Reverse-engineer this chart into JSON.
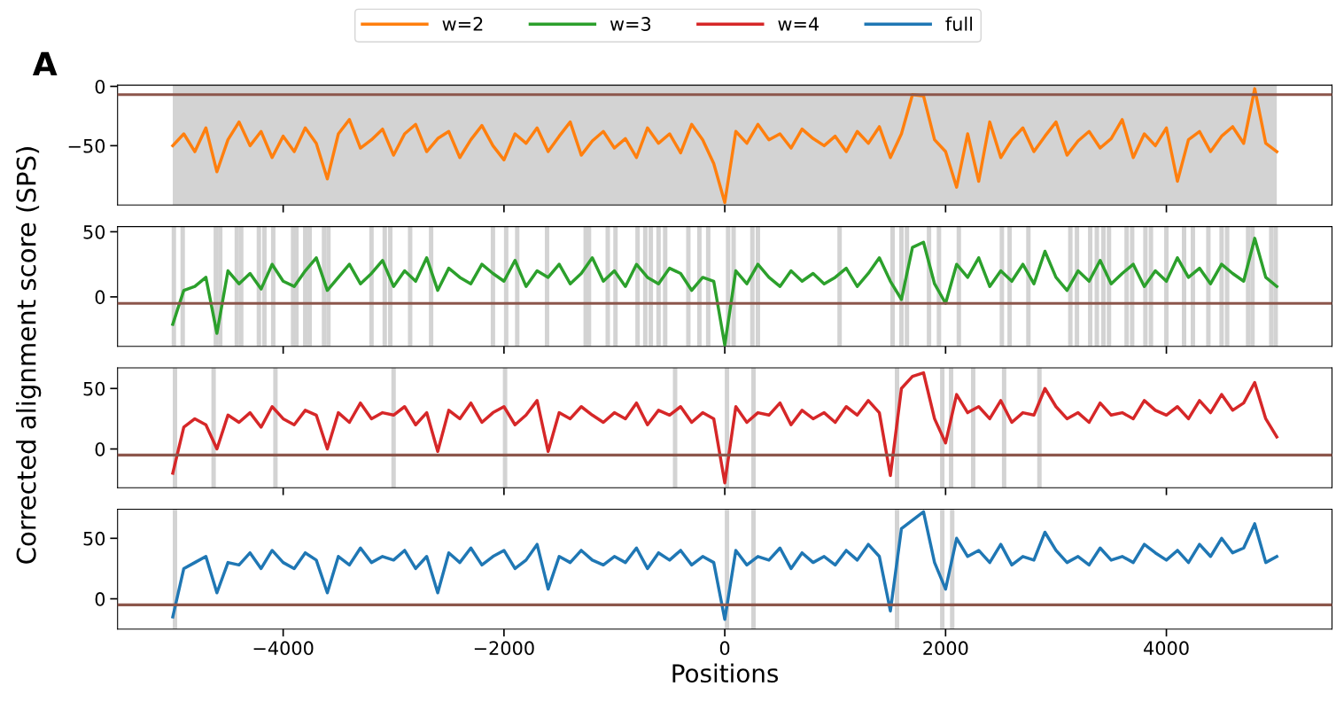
{
  "chart_data": [
    {
      "type": "line",
      "title": "A",
      "ylabel": "Corrected alignment score (SPS)",
      "legend": "top",
      "tick_labels": "y",
      "x": [
        -5000,
        -4900,
        -4800,
        -4700,
        -4600,
        -4500,
        -4400,
        -4300,
        -4200,
        -4100,
        -4000,
        -3900,
        -3800,
        -3700,
        -3600,
        -3500,
        -3400,
        -3300,
        -3200,
        -3100,
        -3000,
        -2900,
        -2800,
        -2700,
        -2600,
        -2500,
        -2400,
        -2300,
        -2200,
        -2100,
        -2000,
        -1900,
        -1800,
        -1700,
        -1600,
        -1500,
        -1400,
        -1300,
        -1200,
        -1100,
        -1000,
        -900,
        -800,
        -700,
        -600,
        -500,
        -400,
        -300,
        -200,
        -100,
        0,
        100,
        200,
        300,
        400,
        500,
        600,
        700,
        800,
        900,
        1000,
        1100,
        1200,
        1300,
        1400,
        1500,
        1600,
        1700,
        1800,
        1900,
        2000,
        2100,
        2200,
        2300,
        2400,
        2500,
        2600,
        2700,
        2800,
        2900,
        3000,
        3100,
        3200,
        3300,
        3400,
        3500,
        3600,
        3700,
        3800,
        3900,
        4000,
        4100,
        4200,
        4300,
        4400,
        4500,
        4600,
        4700,
        4800,
        4900,
        5000
      ],
      "series": [
        {
          "name": "w=2",
          "color": "#ff7f0e",
          "values": [
            -50,
            -40,
            -55,
            -35,
            -72,
            -45,
            -30,
            -50,
            -38,
            -60,
            -42,
            -55,
            -35,
            -48,
            -78,
            -40,
            -28,
            -52,
            -45,
            -36,
            -58,
            -40,
            -32,
            -55,
            -44,
            -38,
            -60,
            -45,
            -33,
            -50,
            -62,
            -40,
            -48,
            -35,
            -55,
            -42,
            -30,
            -58,
            -46,
            -38,
            -52,
            -44,
            -60,
            -35,
            -48,
            -40,
            -56,
            -32,
            -45,
            -65,
            -98,
            -38,
            -48,
            -32,
            -45,
            -40,
            -52,
            -36,
            -44,
            -50,
            -42,
            -55,
            -38,
            -48,
            -34,
            -60,
            -40,
            -7,
            -8,
            -45,
            -55,
            -85,
            -40,
            -80,
            -30,
            -60,
            -45,
            -35,
            -55,
            -42,
            -30,
            -58,
            -46,
            -38,
            -52,
            -44,
            -28,
            -60,
            -40,
            -50,
            -35,
            -80,
            -45,
            -38,
            -55,
            -42,
            -34,
            -48,
            -2,
            -48,
            -55
          ]
        }
      ],
      "xlim": [
        -5500,
        5500
      ],
      "xticks": [
        {
          "value": -4000,
          "label": null
        },
        {
          "value": -2000,
          "label": null
        },
        {
          "value": 0,
          "label": null
        },
        {
          "value": 2000,
          "label": null
        },
        {
          "value": 4000,
          "label": null
        }
      ],
      "ylim": [
        -100,
        1
      ],
      "yticks": [
        {
          "value": -50,
          "label": "−50"
        },
        0
      ],
      "ref_lines": [
        {
          "axis": "y",
          "value": -7,
          "color": "#8c564b"
        }
      ],
      "bands": [
        {
          "axis": "x",
          "from": -5000,
          "to": 5000,
          "color": "#d3d3d3"
        }
      ]
    },
    {
      "type": "line",
      "legend": "top",
      "tick_labels": "y",
      "x": [
        -5000,
        -4900,
        -4800,
        -4700,
        -4600,
        -4500,
        -4400,
        -4300,
        -4200,
        -4100,
        -4000,
        -3900,
        -3800,
        -3700,
        -3600,
        -3500,
        -3400,
        -3300,
        -3200,
        -3100,
        -3000,
        -2900,
        -2800,
        -2700,
        -2600,
        -2500,
        -2400,
        -2300,
        -2200,
        -2100,
        -2000,
        -1900,
        -1800,
        -1700,
        -1600,
        -1500,
        -1400,
        -1300,
        -1200,
        -1100,
        -1000,
        -900,
        -800,
        -700,
        -600,
        -500,
        -400,
        -300,
        -200,
        -100,
        0,
        100,
        200,
        300,
        400,
        500,
        600,
        700,
        800,
        900,
        1000,
        1100,
        1200,
        1300,
        1400,
        1500,
        1600,
        1700,
        1800,
        1900,
        2000,
        2100,
        2200,
        2300,
        2400,
        2500,
        2600,
        2700,
        2800,
        2900,
        3000,
        3100,
        3200,
        3300,
        3400,
        3500,
        3600,
        3700,
        3800,
        3900,
        4000,
        4100,
        4200,
        4300,
        4400,
        4500,
        4600,
        4700,
        4800,
        4900,
        5000
      ],
      "series": [
        {
          "name": "w=3",
          "color": "#2ca02c",
          "values": [
            -21,
            5,
            8,
            15,
            -28,
            20,
            10,
            18,
            6,
            25,
            12,
            8,
            20,
            30,
            5,
            15,
            25,
            10,
            18,
            28,
            8,
            20,
            12,
            30,
            5,
            22,
            15,
            10,
            25,
            18,
            12,
            28,
            8,
            20,
            15,
            25,
            10,
            18,
            30,
            12,
            20,
            8,
            25,
            15,
            10,
            22,
            18,
            5,
            15,
            12,
            -37,
            20,
            10,
            25,
            15,
            8,
            20,
            12,
            18,
            10,
            15,
            22,
            8,
            18,
            30,
            12,
            -2,
            38,
            42,
            10,
            -5,
            25,
            15,
            30,
            8,
            20,
            12,
            25,
            10,
            35,
            15,
            5,
            20,
            12,
            28,
            10,
            18,
            25,
            8,
            20,
            12,
            30,
            15,
            22,
            10,
            25,
            18,
            12,
            45,
            15,
            8
          ]
        }
      ],
      "xlim": [
        -5500,
        5500
      ],
      "xticks": [
        {
          "value": -4000,
          "label": null
        },
        {
          "value": -2000,
          "label": null
        },
        {
          "value": 0,
          "label": null
        },
        {
          "value": 2000,
          "label": null
        },
        {
          "value": 4000,
          "label": null
        }
      ],
      "ylim": [
        -38,
        54
      ],
      "yticks": [
        0,
        50
      ],
      "ref_lines": [
        {
          "axis": "y",
          "value": -5,
          "color": "#8c564b"
        }
      ],
      "bands": [
        {
          "axis": "x",
          "from": -5010,
          "to": -4970,
          "color": "#d3d3d3"
        },
        {
          "axis": "x",
          "from": -4930,
          "to": -4890,
          "color": "#d3d3d3"
        },
        {
          "axis": "x",
          "from": -4630,
          "to": -4590,
          "color": "#d3d3d3"
        },
        {
          "axis": "x",
          "from": -4590,
          "to": -4550,
          "color": "#d3d3d3"
        },
        {
          "axis": "x",
          "from": -4440,
          "to": -4400,
          "color": "#d3d3d3"
        },
        {
          "axis": "x",
          "from": -4400,
          "to": -4360,
          "color": "#d3d3d3"
        },
        {
          "axis": "x",
          "from": -4240,
          "to": -4200,
          "color": "#d3d3d3"
        },
        {
          "axis": "x",
          "from": -4190,
          "to": -4150,
          "color": "#d3d3d3"
        },
        {
          "axis": "x",
          "from": -4110,
          "to": -4070,
          "color": "#d3d3d3"
        },
        {
          "axis": "x",
          "from": -3930,
          "to": -3890,
          "color": "#d3d3d3"
        },
        {
          "axis": "x",
          "from": -3900,
          "to": -3860,
          "color": "#d3d3d3"
        },
        {
          "axis": "x",
          "from": -3820,
          "to": -3780,
          "color": "#d3d3d3"
        },
        {
          "axis": "x",
          "from": -3780,
          "to": -3740,
          "color": "#d3d3d3"
        },
        {
          "axis": "x",
          "from": -3650,
          "to": -3610,
          "color": "#d3d3d3"
        },
        {
          "axis": "x",
          "from": -3610,
          "to": -3570,
          "color": "#d3d3d3"
        },
        {
          "axis": "x",
          "from": -3220,
          "to": -3180,
          "color": "#d3d3d3"
        },
        {
          "axis": "x",
          "from": -3100,
          "to": -3060,
          "color": "#d3d3d3"
        },
        {
          "axis": "x",
          "from": -3050,
          "to": -3010,
          "color": "#d3d3d3"
        },
        {
          "axis": "x",
          "from": -2870,
          "to": -2830,
          "color": "#d3d3d3"
        },
        {
          "axis": "x",
          "from": -2680,
          "to": -2640,
          "color": "#d3d3d3"
        },
        {
          "axis": "x",
          "from": -2120,
          "to": -2080,
          "color": "#d3d3d3"
        },
        {
          "axis": "x",
          "from": -2000,
          "to": -1960,
          "color": "#d3d3d3"
        },
        {
          "axis": "x",
          "from": -1900,
          "to": -1860,
          "color": "#d3d3d3"
        },
        {
          "axis": "x",
          "from": -1630,
          "to": -1590,
          "color": "#d3d3d3"
        },
        {
          "axis": "x",
          "from": -1280,
          "to": -1240,
          "color": "#d3d3d3"
        },
        {
          "axis": "x",
          "from": -1250,
          "to": -1210,
          "color": "#d3d3d3"
        },
        {
          "axis": "x",
          "from": -1080,
          "to": -1040,
          "color": "#d3d3d3"
        },
        {
          "axis": "x",
          "from": -1010,
          "to": -970,
          "color": "#d3d3d3"
        },
        {
          "axis": "x",
          "from": -810,
          "to": -770,
          "color": "#d3d3d3"
        },
        {
          "axis": "x",
          "from": -740,
          "to": -700,
          "color": "#d3d3d3"
        },
        {
          "axis": "x",
          "from": -690,
          "to": -650,
          "color": "#d3d3d3"
        },
        {
          "axis": "x",
          "from": -620,
          "to": -580,
          "color": "#d3d3d3"
        },
        {
          "axis": "x",
          "from": -560,
          "to": -520,
          "color": "#d3d3d3"
        },
        {
          "axis": "x",
          "from": -350,
          "to": -310,
          "color": "#d3d3d3"
        },
        {
          "axis": "x",
          "from": -250,
          "to": -210,
          "color": "#d3d3d3"
        },
        {
          "axis": "x",
          "from": -170,
          "to": -130,
          "color": "#d3d3d3"
        },
        {
          "axis": "x",
          "from": 10,
          "to": 50,
          "color": "#d3d3d3"
        },
        {
          "axis": "x",
          "from": 60,
          "to": 100,
          "color": "#d3d3d3"
        },
        {
          "axis": "x",
          "from": 230,
          "to": 270,
          "color": "#d3d3d3"
        },
        {
          "axis": "x",
          "from": 280,
          "to": 320,
          "color": "#d3d3d3"
        },
        {
          "axis": "x",
          "from": 1020,
          "to": 1060,
          "color": "#d3d3d3"
        },
        {
          "axis": "x",
          "from": 1500,
          "to": 1540,
          "color": "#d3d3d3"
        },
        {
          "axis": "x",
          "from": 1580,
          "to": 1620,
          "color": "#d3d3d3"
        },
        {
          "axis": "x",
          "from": 1630,
          "to": 1670,
          "color": "#d3d3d3"
        },
        {
          "axis": "x",
          "from": 1830,
          "to": 1870,
          "color": "#d3d3d3"
        },
        {
          "axis": "x",
          "from": 1920,
          "to": 1960,
          "color": "#d3d3d3"
        },
        {
          "axis": "x",
          "from": 2100,
          "to": 2140,
          "color": "#d3d3d3"
        },
        {
          "axis": "x",
          "from": 2490,
          "to": 2530,
          "color": "#d3d3d3"
        },
        {
          "axis": "x",
          "from": 2560,
          "to": 2600,
          "color": "#d3d3d3"
        },
        {
          "axis": "x",
          "from": 2730,
          "to": 2770,
          "color": "#d3d3d3"
        },
        {
          "axis": "x",
          "from": 3110,
          "to": 3150,
          "color": "#d3d3d3"
        },
        {
          "axis": "x",
          "from": 3170,
          "to": 3210,
          "color": "#d3d3d3"
        },
        {
          "axis": "x",
          "from": 3290,
          "to": 3330,
          "color": "#d3d3d3"
        },
        {
          "axis": "x",
          "from": 3350,
          "to": 3390,
          "color": "#d3d3d3"
        },
        {
          "axis": "x",
          "from": 3410,
          "to": 3450,
          "color": "#d3d3d3"
        },
        {
          "axis": "x",
          "from": 3460,
          "to": 3500,
          "color": "#d3d3d3"
        },
        {
          "axis": "x",
          "from": 3620,
          "to": 3660,
          "color": "#d3d3d3"
        },
        {
          "axis": "x",
          "from": 3670,
          "to": 3710,
          "color": "#d3d3d3"
        },
        {
          "axis": "x",
          "from": 3790,
          "to": 3830,
          "color": "#d3d3d3"
        },
        {
          "axis": "x",
          "from": 3840,
          "to": 3880,
          "color": "#d3d3d3"
        },
        {
          "axis": "x",
          "from": 3980,
          "to": 4020,
          "color": "#d3d3d3"
        },
        {
          "axis": "x",
          "from": 4140,
          "to": 4180,
          "color": "#d3d3d3"
        },
        {
          "axis": "x",
          "from": 4220,
          "to": 4260,
          "color": "#d3d3d3"
        },
        {
          "axis": "x",
          "from": 4360,
          "to": 4400,
          "color": "#d3d3d3"
        },
        {
          "axis": "x",
          "from": 4480,
          "to": 4520,
          "color": "#d3d3d3"
        },
        {
          "axis": "x",
          "from": 4530,
          "to": 4570,
          "color": "#d3d3d3"
        },
        {
          "axis": "x",
          "from": 4720,
          "to": 4760,
          "color": "#d3d3d3"
        },
        {
          "axis": "x",
          "from": 4760,
          "to": 4800,
          "color": "#d3d3d3"
        },
        {
          "axis": "x",
          "from": 4930,
          "to": 4970,
          "color": "#d3d3d3"
        },
        {
          "axis": "x",
          "from": 4970,
          "to": 5010,
          "color": "#d3d3d3"
        }
      ]
    },
    {
      "type": "line",
      "legend": "top",
      "tick_labels": "y",
      "x": [
        -5000,
        -4900,
        -4800,
        -4700,
        -4600,
        -4500,
        -4400,
        -4300,
        -4200,
        -4100,
        -4000,
        -3900,
        -3800,
        -3700,
        -3600,
        -3500,
        -3400,
        -3300,
        -3200,
        -3100,
        -3000,
        -2900,
        -2800,
        -2700,
        -2600,
        -2500,
        -2400,
        -2300,
        -2200,
        -2100,
        -2000,
        -1900,
        -1800,
        -1700,
        -1600,
        -1500,
        -1400,
        -1300,
        -1200,
        -1100,
        -1000,
        -900,
        -800,
        -700,
        -600,
        -500,
        -400,
        -300,
        -200,
        -100,
        0,
        100,
        200,
        300,
        400,
        500,
        600,
        700,
        800,
        900,
        1000,
        1100,
        1200,
        1300,
        1400,
        1500,
        1600,
        1700,
        1800,
        1900,
        2000,
        2100,
        2200,
        2300,
        2400,
        2500,
        2600,
        2700,
        2800,
        2900,
        3000,
        3100,
        3200,
        3300,
        3400,
        3500,
        3600,
        3700,
        3800,
        3900,
        4000,
        4100,
        4200,
        4300,
        4400,
        4500,
        4600,
        4700,
        4800,
        4900,
        5000
      ],
      "series": [
        {
          "name": "w=4",
          "color": "#d62728",
          "values": [
            -20,
            18,
            25,
            20,
            0,
            28,
            22,
            30,
            18,
            35,
            25,
            20,
            32,
            28,
            0,
            30,
            22,
            38,
            25,
            30,
            28,
            35,
            20,
            30,
            -2,
            32,
            25,
            38,
            22,
            30,
            35,
            20,
            28,
            40,
            -2,
            30,
            25,
            35,
            28,
            22,
            30,
            25,
            38,
            20,
            32,
            28,
            35,
            22,
            30,
            25,
            -28,
            35,
            22,
            30,
            28,
            38,
            20,
            32,
            25,
            30,
            22,
            35,
            28,
            40,
            30,
            -22,
            50,
            60,
            63,
            25,
            5,
            45,
            30,
            35,
            25,
            40,
            22,
            30,
            28,
            50,
            35,
            25,
            30,
            22,
            38,
            28,
            30,
            25,
            40,
            32,
            28,
            35,
            25,
            40,
            30,
            45,
            32,
            38,
            55,
            25,
            10
          ]
        }
      ],
      "xlim": [
        -5500,
        5500
      ],
      "xticks": [
        {
          "value": -4000,
          "label": null
        },
        {
          "value": -2000,
          "label": null
        },
        {
          "value": 0,
          "label": null
        },
        {
          "value": 2000,
          "label": null
        },
        {
          "value": 4000,
          "label": null
        }
      ],
      "ylim": [
        -32,
        67
      ],
      "yticks": [
        0,
        50
      ],
      "ref_lines": [
        {
          "axis": "y",
          "value": -5,
          "color": "#8c564b"
        }
      ],
      "bands": [
        {
          "axis": "x",
          "from": -5000,
          "to": -4960,
          "color": "#d3d3d3"
        },
        {
          "axis": "x",
          "from": -4650,
          "to": -4610,
          "color": "#d3d3d3"
        },
        {
          "axis": "x",
          "from": -4090,
          "to": -4050,
          "color": "#d3d3d3"
        },
        {
          "axis": "x",
          "from": -3020,
          "to": -2980,
          "color": "#d3d3d3"
        },
        {
          "axis": "x",
          "from": -2010,
          "to": -1970,
          "color": "#d3d3d3"
        },
        {
          "axis": "x",
          "from": -470,
          "to": -430,
          "color": "#d3d3d3"
        },
        {
          "axis": "x",
          "from": 0,
          "to": 40,
          "color": "#d3d3d3"
        },
        {
          "axis": "x",
          "from": 240,
          "to": 280,
          "color": "#d3d3d3"
        },
        {
          "axis": "x",
          "from": 1540,
          "to": 1580,
          "color": "#d3d3d3"
        },
        {
          "axis": "x",
          "from": 1950,
          "to": 1990,
          "color": "#d3d3d3"
        },
        {
          "axis": "x",
          "from": 2030,
          "to": 2070,
          "color": "#d3d3d3"
        },
        {
          "axis": "x",
          "from": 2230,
          "to": 2270,
          "color": "#d3d3d3"
        },
        {
          "axis": "x",
          "from": 2510,
          "to": 2550,
          "color": "#d3d3d3"
        },
        {
          "axis": "x",
          "from": 2830,
          "to": 2870,
          "color": "#d3d3d3"
        }
      ]
    },
    {
      "type": "line",
      "xlabel": "Positions",
      "legend": "top",
      "x": [
        -5000,
        -4900,
        -4800,
        -4700,
        -4600,
        -4500,
        -4400,
        -4300,
        -4200,
        -4100,
        -4000,
        -3900,
        -3800,
        -3700,
        -3600,
        -3500,
        -3400,
        -3300,
        -3200,
        -3100,
        -3000,
        -2900,
        -2800,
        -2700,
        -2600,
        -2500,
        -2400,
        -2300,
        -2200,
        -2100,
        -2000,
        -1900,
        -1800,
        -1700,
        -1600,
        -1500,
        -1400,
        -1300,
        -1200,
        -1100,
        -1000,
        -900,
        -800,
        -700,
        -600,
        -500,
        -400,
        -300,
        -200,
        -100,
        0,
        100,
        200,
        300,
        400,
        500,
        600,
        700,
        800,
        900,
        1000,
        1100,
        1200,
        1300,
        1400,
        1500,
        1600,
        1700,
        1800,
        1900,
        2000,
        2100,
        2200,
        2300,
        2400,
        2500,
        2600,
        2700,
        2800,
        2900,
        3000,
        3100,
        3200,
        3300,
        3400,
        3500,
        3600,
        3700,
        3800,
        3900,
        4000,
        4100,
        4200,
        4300,
        4400,
        4500,
        4600,
        4700,
        4800,
        4900,
        5000
      ],
      "series": [
        {
          "name": "full",
          "color": "#1f77b4",
          "values": [
            -15,
            25,
            30,
            35,
            5,
            30,
            28,
            38,
            25,
            40,
            30,
            25,
            38,
            32,
            5,
            35,
            28,
            42,
            30,
            35,
            32,
            40,
            25,
            35,
            5,
            38,
            30,
            42,
            28,
            35,
            40,
            25,
            32,
            45,
            8,
            35,
            30,
            40,
            32,
            28,
            35,
            30,
            42,
            25,
            38,
            32,
            40,
            28,
            35,
            30,
            -17,
            40,
            28,
            35,
            32,
            42,
            25,
            38,
            30,
            35,
            28,
            40,
            32,
            45,
            35,
            -10,
            58,
            65,
            72,
            30,
            8,
            50,
            35,
            40,
            30,
            45,
            28,
            35,
            32,
            55,
            40,
            30,
            35,
            28,
            42,
            32,
            35,
            30,
            45,
            38,
            32,
            40,
            30,
            45,
            35,
            50,
            38,
            42,
            62,
            30,
            35
          ]
        }
      ],
      "xlim": [
        -5500,
        5500
      ],
      "xticks": [
        {
          "value": -4000,
          "label": "−4000"
        },
        {
          "value": -2000,
          "label": "−2000"
        },
        0,
        2000,
        4000
      ],
      "ylim": [
        -25,
        74
      ],
      "yticks": [
        0,
        50
      ],
      "ref_lines": [
        {
          "axis": "y",
          "value": -5,
          "color": "#8c564b"
        }
      ],
      "bands": [
        {
          "axis": "x",
          "from": -5000,
          "to": -4960,
          "color": "#d3d3d3"
        },
        {
          "axis": "x",
          "from": 0,
          "to": 40,
          "color": "#d3d3d3"
        },
        {
          "axis": "x",
          "from": 240,
          "to": 280,
          "color": "#d3d3d3"
        },
        {
          "axis": "x",
          "from": 1540,
          "to": 1580,
          "color": "#d3d3d3"
        },
        {
          "axis": "x",
          "from": 1950,
          "to": 1990,
          "color": "#d3d3d3"
        },
        {
          "axis": "x",
          "from": 2040,
          "to": 2080,
          "color": "#d3d3d3"
        }
      ]
    }
  ]
}
